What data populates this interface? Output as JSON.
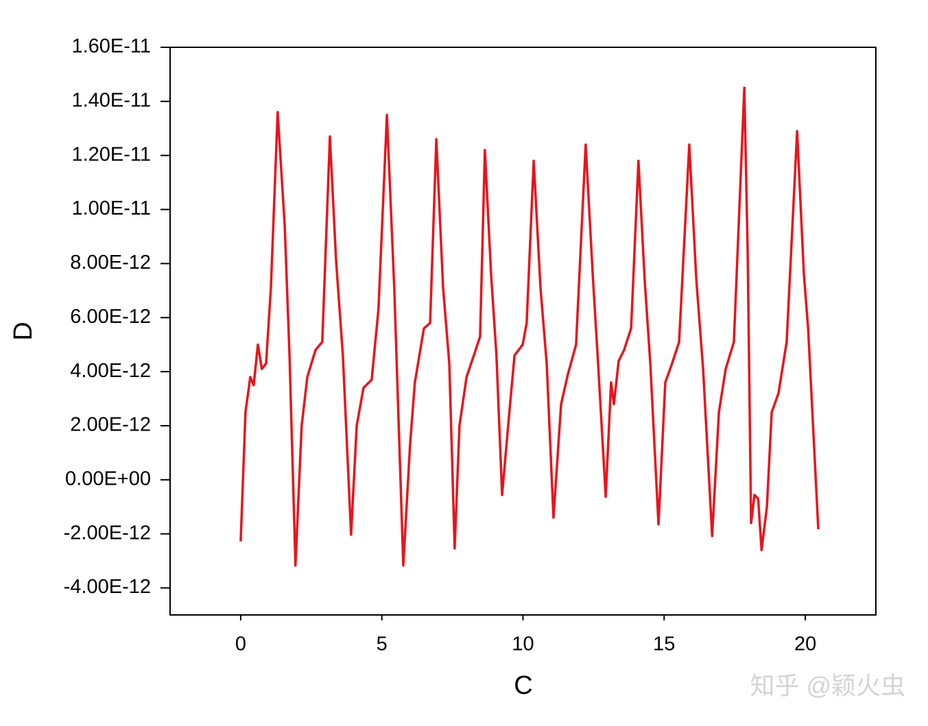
{
  "chart_data": {
    "type": "line",
    "x_label": "C",
    "y_label": "D",
    "watermark": "知乎 @颖火虫",
    "xlim": [
      -2.5,
      22.5
    ],
    "xticks": [
      0,
      5,
      10,
      15,
      20
    ],
    "ylim": [
      -5e-12,
      1.6e-11
    ],
    "yticks": [
      {
        "value": -4e-12,
        "label": "-4.00E-12"
      },
      {
        "value": -2e-12,
        "label": "-2.00E-12"
      },
      {
        "value": 0,
        "label": "0.00E+00"
      },
      {
        "value": 2e-12,
        "label": "2.00E-12"
      },
      {
        "value": 4e-12,
        "label": "4.00E-12"
      },
      {
        "value": 6e-12,
        "label": "6.00E-12"
      },
      {
        "value": 8e-12,
        "label": "8.00E-12"
      },
      {
        "value": 1e-11,
        "label": "1.00E-11"
      },
      {
        "value": 1.2e-11,
        "label": "1.20E-11"
      },
      {
        "value": 1.4e-11,
        "label": "1.40E-11"
      },
      {
        "value": 1.6e-11,
        "label": "1.60E-11"
      }
    ],
    "series": [
      {
        "color": "#e8141c",
        "x": [
          0,
          0.17,
          0.34,
          0.46,
          0.61,
          0.75,
          0.9,
          1.07,
          1.31,
          1.56,
          1.73,
          1.94,
          2.16,
          2.36,
          2.65,
          2.89,
          3.16,
          3.38,
          3.62,
          3.91,
          4.11,
          4.35,
          4.64,
          4.88,
          5.18,
          5.44,
          5.76,
          6.0,
          6.17,
          6.49,
          6.71,
          6.93,
          7.17,
          7.39,
          7.58,
          7.75,
          8.0,
          8.29,
          8.48,
          8.65,
          8.87,
          9.06,
          9.26,
          9.5,
          9.7,
          9.99,
          10.13,
          10.38,
          10.62,
          10.84,
          11.08,
          11.35,
          11.59,
          11.88,
          12.22,
          12.47,
          12.66,
          12.93,
          13.12,
          13.22,
          13.39,
          13.58,
          13.83,
          14.09,
          14.31,
          14.51,
          14.8,
          15.04,
          15.28,
          15.53,
          15.89,
          16.14,
          16.38,
          16.7,
          16.94,
          17.18,
          17.47,
          17.84,
          17.96,
          18.08,
          18.2,
          18.33,
          18.45,
          18.64,
          18.81,
          19.05,
          19.34,
          19.71,
          19.95,
          20.1,
          20.46
        ],
        "values": [
          -2.28e-12,
          2.5e-12,
          3.8e-12,
          3.5e-12,
          5e-12,
          4.1e-12,
          4.3e-12,
          7.1e-12,
          1.36e-11,
          9.4e-12,
          4.6e-12,
          -3.17e-12,
          2e-12,
          3.8e-12,
          4.8e-12,
          5.1e-12,
          1.27e-11,
          8.1e-12,
          4.6e-12,
          -2.03e-12,
          2e-12,
          3.4e-12,
          3.7e-12,
          6.3e-12,
          1.35e-11,
          7.1e-12,
          -3.17e-12,
          1.3e-12,
          3.6e-12,
          5.6e-12,
          5.8e-12,
          1.26e-11,
          7.1e-12,
          4.3e-12,
          -2.54e-12,
          2e-12,
          3.8e-12,
          4.7e-12,
          5.3e-12,
          1.22e-11,
          7.6e-12,
          4.6e-12,
          -5.6e-13,
          2.3e-12,
          4.6e-12,
          5e-12,
          5.8e-12,
          1.18e-11,
          7.1e-12,
          4.3e-12,
          -1.4e-12,
          2.8e-12,
          3.9e-12,
          5e-12,
          1.24e-11,
          7.6e-12,
          4.3e-12,
          -6.3e-13,
          3.6e-12,
          2.8e-12,
          4.4e-12,
          4.8e-12,
          5.6e-12,
          1.18e-11,
          7.4e-12,
          4.3e-12,
          -1.65e-12,
          3.6e-12,
          4.3e-12,
          5.1e-12,
          1.24e-11,
          7.4e-12,
          4.1e-12,
          -2.08e-12,
          2.5e-12,
          4.1e-12,
          5.1e-12,
          1.45e-11,
          8.4e-12,
          -1.6e-12,
          -5.6e-13,
          -7e-13,
          -2.6e-12,
          -1e-12,
          2.5e-12,
          3.2e-12,
          5.1e-12,
          1.29e-11,
          7.6e-12,
          5.6e-12,
          -1.83e-12
        ]
      }
    ]
  }
}
